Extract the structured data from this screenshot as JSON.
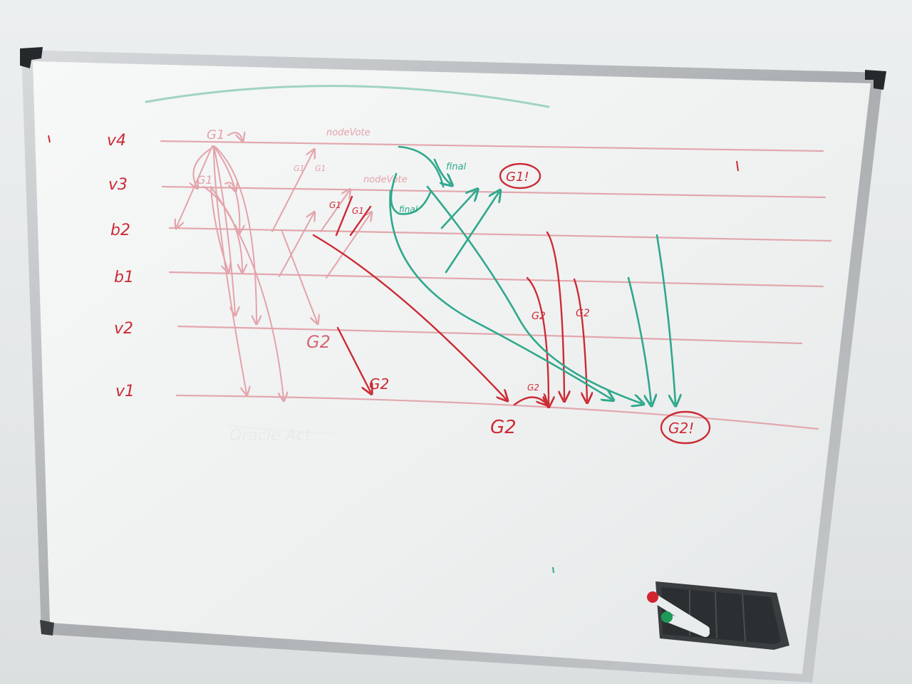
{
  "board": {
    "row_labels": [
      "v4",
      "v3",
      "b2",
      "b1",
      "v2",
      "v1"
    ],
    "annotations": {
      "g1_top": "G1",
      "g1_second": "G1",
      "small_g1_a": "G1",
      "small_g1_b": "G1",
      "small_g1_c": "G1",
      "small_g1_d": "G1",
      "note_1": "nodeVote",
      "note_2": "nodeVote",
      "final_1": "final",
      "final_2": "final",
      "g1_circled": "G1!",
      "g2_circled": "G2!",
      "g2_v2": "G2",
      "g2_mid": "G2",
      "g2_bottom": "G2",
      "g2_small": "G2",
      "g2_arrow_1": "G2",
      "g2_arrow_2": "G2",
      "faded_text": "Oracle Act"
    }
  },
  "colors": {
    "red": "#cc2b35",
    "faded_red": "#e3a3aa",
    "teal": "#2fa88c",
    "frame": "#b8bcbf",
    "board": "#f5f6f6"
  },
  "icons": [
    "red-marker-icon",
    "green-marker-icon",
    "marker-tray-icon"
  ]
}
